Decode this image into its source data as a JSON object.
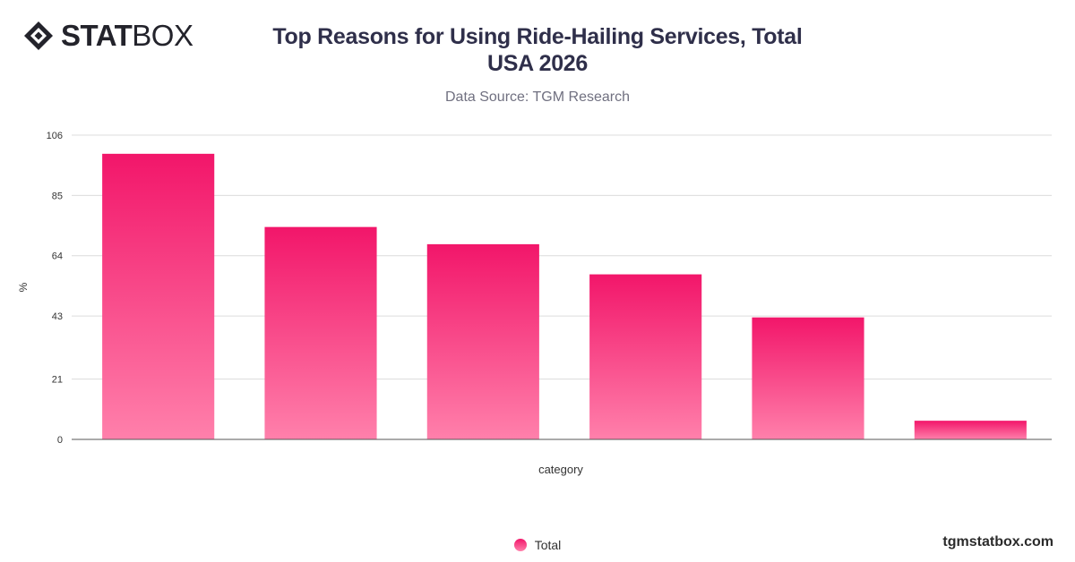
{
  "brand": {
    "logo_stat": "STAT",
    "logo_box": "BOX",
    "website": "tgmstatbox.com"
  },
  "header": {
    "title_line1": "Top Reasons for Using Ride-Hailing Services, Total",
    "title_line2": "USA 2026",
    "subtitle": "Data Source: TGM Research"
  },
  "legend": {
    "label": "Total"
  },
  "colors": {
    "bar_top": "#f2166a",
    "bar_bottom": "#ff80ab",
    "grid": "#dcdcdc",
    "axis": "#555555",
    "text": "#333333"
  },
  "chart_data": {
    "type": "bar",
    "title": "Top Reasons for Using Ride-Hailing Services, Total USA 2026",
    "subtitle": "Data Source: TGM Research",
    "xlabel": "category",
    "ylabel": "%",
    "categories": [
      "",
      "",
      "",
      "",
      "",
      ""
    ],
    "series": [
      {
        "name": "Total",
        "values": [
          99.5,
          74,
          68,
          57.5,
          42.5,
          6.5
        ]
      }
    ],
    "ylim": [
      0,
      106
    ],
    "yticks": [
      0,
      21,
      43,
      64,
      85,
      106
    ],
    "grid": true,
    "legend_position": "bottom"
  }
}
